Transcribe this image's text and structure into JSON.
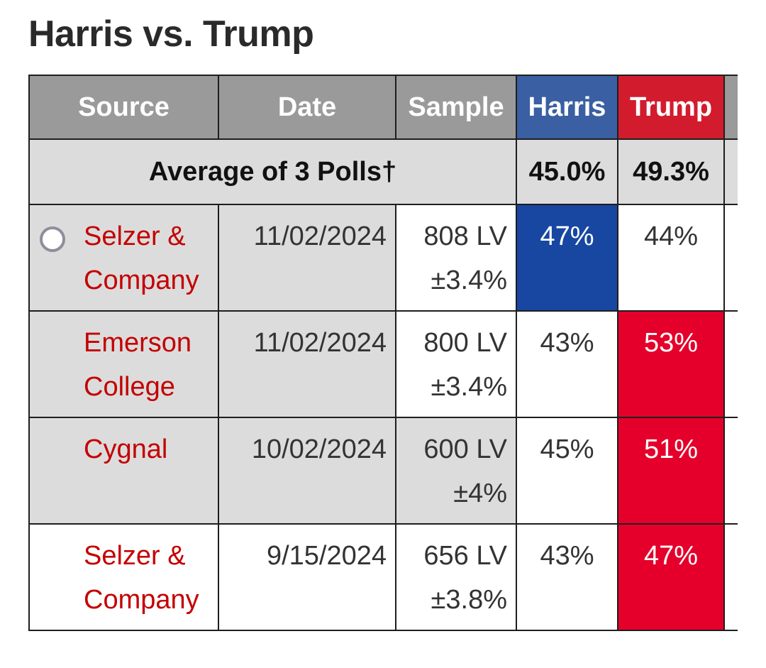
{
  "title": "Harris vs. Trump",
  "headers": {
    "source": "Source",
    "date": "Date",
    "sample": "Sample",
    "harris": "Harris",
    "trump": "Trump"
  },
  "average": {
    "label": "Average of 3 Polls†",
    "harris": "45.0%",
    "trump": "49.3%"
  },
  "polls": [
    {
      "source": "Selzer & Company",
      "date": "11/02/2024",
      "sample": "808 LV",
      "moe": "±3.4%",
      "harris": "47%",
      "trump": "44%",
      "leader": "harris"
    },
    {
      "source": "Emerson College",
      "date": "11/02/2024",
      "sample": "800 LV",
      "moe": "±3.4%",
      "harris": "43%",
      "trump": "53%",
      "leader": "trump"
    },
    {
      "source": "Cygnal",
      "date": "10/02/2024",
      "sample": "600 LV",
      "moe": "±4%",
      "harris": "45%",
      "trump": "51%",
      "leader": "trump"
    },
    {
      "source": "Selzer & Company",
      "date": "9/15/2024",
      "sample": "656 LV",
      "moe": "±3.8%",
      "harris": "43%",
      "trump": "47%",
      "leader": "trump"
    }
  ],
  "colors": {
    "header_gray": "#9a9a9a",
    "harris_header": "#3a5fa3",
    "trump_header": "#d21c2e",
    "harris_win": "#1747a1",
    "trump_win": "#e4002b",
    "source_link": "#c40000"
  }
}
